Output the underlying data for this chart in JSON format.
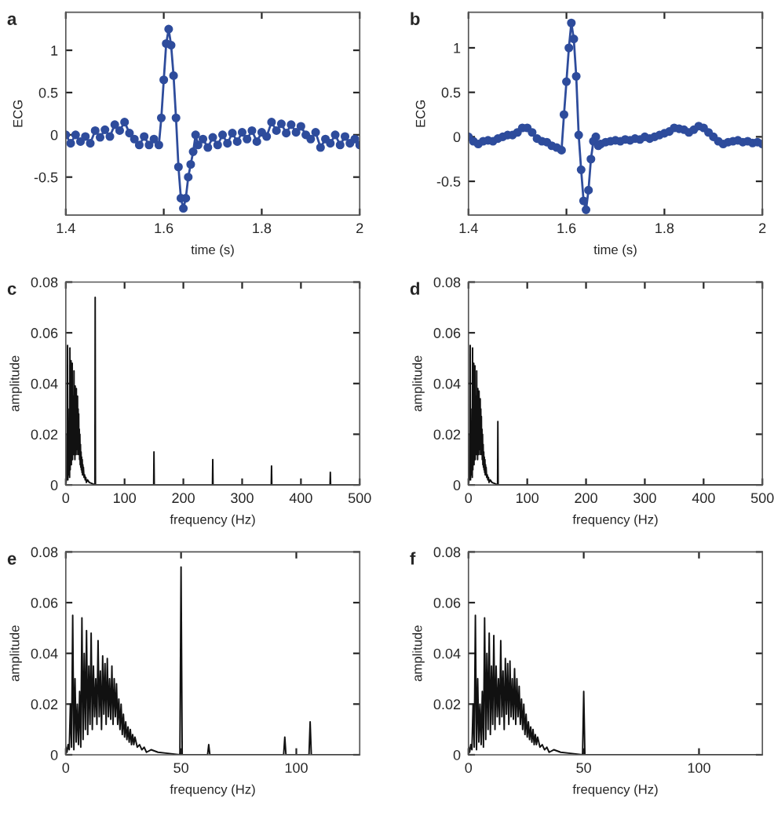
{
  "chart_data": [
    {
      "type": "line",
      "title": "a",
      "xlabel": "time (s)",
      "ylabel": "ECG",
      "xlim": [
        1.4,
        2
      ],
      "ylim": [
        -0.95,
        1.45
      ],
      "xticks": [
        1.4,
        1.6,
        1.8,
        2
      ],
      "yticks": [
        -0.5,
        0,
        0.5,
        1
      ],
      "grid": false,
      "marker": "circle",
      "line_style": "solid",
      "series": [
        {
          "color": "#2e4c9c",
          "x": [
            1.4,
            1.41,
            1.42,
            1.43,
            1.44,
            1.45,
            1.46,
            1.47,
            1.48,
            1.49,
            1.5,
            1.51,
            1.52,
            1.53,
            1.54,
            1.55,
            1.56,
            1.57,
            1.58,
            1.59,
            1.595,
            1.6,
            1.605,
            1.61,
            1.615,
            1.62,
            1.625,
            1.63,
            1.635,
            1.64,
            1.645,
            1.65,
            1.655,
            1.66,
            1.665,
            1.67,
            1.68,
            1.69,
            1.7,
            1.71,
            1.72,
            1.73,
            1.74,
            1.75,
            1.76,
            1.77,
            1.78,
            1.79,
            1.8,
            1.81,
            1.82,
            1.83,
            1.84,
            1.85,
            1.86,
            1.87,
            1.88,
            1.89,
            1.9,
            1.91,
            1.92,
            1.93,
            1.94,
            1.95,
            1.96,
            1.97,
            1.98,
            1.99,
            2.0
          ],
          "values": [
            0.0,
            -0.1,
            0.0,
            -0.08,
            -0.02,
            -0.1,
            0.05,
            -0.03,
            0.06,
            -0.02,
            0.12,
            0.05,
            0.15,
            0.02,
            -0.05,
            -0.12,
            -0.02,
            -0.12,
            -0.05,
            -0.12,
            0.2,
            0.65,
            1.08,
            1.25,
            1.06,
            0.7,
            0.2,
            -0.38,
            -0.75,
            -0.87,
            -0.75,
            -0.5,
            -0.35,
            -0.2,
            0.0,
            -0.12,
            -0.05,
            -0.15,
            -0.03,
            -0.12,
            0.0,
            -0.1,
            0.02,
            -0.08,
            0.03,
            -0.05,
            0.05,
            -0.08,
            0.03,
            -0.02,
            0.15,
            0.05,
            0.13,
            0.02,
            0.12,
            0.03,
            0.1,
            0.0,
            -0.05,
            0.03,
            -0.15,
            -0.05,
            -0.1,
            0.0,
            -0.12,
            -0.02,
            -0.1,
            -0.05,
            -0.12
          ]
        }
      ]
    },
    {
      "type": "line",
      "title": "b",
      "xlabel": "time (s)",
      "ylabel": "ECG",
      "xlim": [
        1.4,
        2
      ],
      "ylim": [
        -0.88,
        1.4
      ],
      "xticks": [
        1.4,
        1.6,
        1.8,
        2
      ],
      "yticks": [
        -0.5,
        0,
        0.5,
        1
      ],
      "grid": false,
      "marker": "circle",
      "line_style": "solid",
      "series": [
        {
          "color": "#2e4c9c",
          "x": [
            1.4,
            1.41,
            1.42,
            1.43,
            1.44,
            1.45,
            1.46,
            1.47,
            1.48,
            1.49,
            1.5,
            1.51,
            1.52,
            1.53,
            1.54,
            1.55,
            1.56,
            1.57,
            1.58,
            1.59,
            1.595,
            1.6,
            1.605,
            1.61,
            1.615,
            1.62,
            1.625,
            1.63,
            1.635,
            1.64,
            1.645,
            1.65,
            1.655,
            1.66,
            1.665,
            1.67,
            1.68,
            1.69,
            1.7,
            1.71,
            1.72,
            1.73,
            1.74,
            1.75,
            1.76,
            1.77,
            1.78,
            1.79,
            1.8,
            1.81,
            1.82,
            1.83,
            1.84,
            1.85,
            1.86,
            1.87,
            1.88,
            1.89,
            1.9,
            1.91,
            1.92,
            1.93,
            1.94,
            1.95,
            1.96,
            1.97,
            1.98,
            1.99,
            2.0
          ],
          "values": [
            0.0,
            -0.05,
            -0.08,
            -0.05,
            -0.04,
            -0.05,
            -0.02,
            0.0,
            0.02,
            0.02,
            0.05,
            0.1,
            0.1,
            0.05,
            -0.02,
            -0.05,
            -0.06,
            -0.1,
            -0.12,
            -0.15,
            0.25,
            0.62,
            1.0,
            1.28,
            1.1,
            0.68,
            0.02,
            -0.37,
            -0.72,
            -0.82,
            -0.6,
            -0.25,
            -0.05,
            0.0,
            -0.1,
            -0.08,
            -0.06,
            -0.05,
            -0.04,
            -0.05,
            -0.03,
            -0.04,
            -0.02,
            -0.03,
            0.0,
            -0.02,
            0.0,
            0.02,
            0.04,
            0.06,
            0.1,
            0.09,
            0.08,
            0.05,
            0.08,
            0.12,
            0.1,
            0.05,
            0.0,
            -0.05,
            -0.08,
            -0.06,
            -0.05,
            -0.04,
            -0.06,
            -0.05,
            -0.07,
            -0.06,
            -0.08
          ]
        }
      ]
    },
    {
      "type": "line",
      "title": "c",
      "xlabel": "frequency (Hz)",
      "ylabel": "amplitude",
      "xlim": [
        0,
        500
      ],
      "ylim": [
        0,
        0.08
      ],
      "xticks": [
        0,
        100,
        200,
        300,
        400,
        500
      ],
      "yticks": [
        0,
        0.02,
        0.04,
        0.06,
        0.08
      ],
      "grid": false,
      "marker": "none",
      "line_style": "solid",
      "series": [
        {
          "color": "#111111",
          "x": [
            0,
            0.5,
            1,
            1.5,
            2,
            2.5,
            3,
            3.5,
            4,
            4.5,
            5,
            5.5,
            6,
            6.5,
            7,
            7.5,
            8,
            8.5,
            9,
            9.5,
            10,
            10.5,
            11,
            11.5,
            12,
            12.5,
            13,
            13.5,
            14,
            14.5,
            15,
            15.5,
            16,
            16.5,
            17,
            17.5,
            18,
            18.5,
            19,
            19.5,
            20,
            20.5,
            21,
            21.5,
            22,
            22.5,
            23,
            23.5,
            24,
            24.5,
            25,
            25.5,
            26,
            26.5,
            27,
            27.5,
            28,
            28.5,
            29,
            29.5,
            30,
            31,
            32,
            33,
            34,
            35,
            37,
            40,
            45,
            49.5,
            50,
            50.5,
            149.5,
            150,
            150.5,
            249.5,
            250,
            250.5,
            349.5,
            350,
            350.5,
            449.5,
            450,
            450.5,
            500
          ],
          "values": [
            0.003,
            0.001,
            0.004,
            0.002,
            0.02,
            0.003,
            0.055,
            0.002,
            0.03,
            0.005,
            0.02,
            0.004,
            0.025,
            0.003,
            0.054,
            0.006,
            0.04,
            0.01,
            0.049,
            0.008,
            0.035,
            0.012,
            0.048,
            0.01,
            0.035,
            0.015,
            0.03,
            0.012,
            0.045,
            0.015,
            0.033,
            0.01,
            0.039,
            0.016,
            0.036,
            0.012,
            0.038,
            0.015,
            0.03,
            0.014,
            0.035,
            0.012,
            0.03,
            0.015,
            0.028,
            0.012,
            0.022,
            0.01,
            0.02,
            0.008,
            0.016,
            0.007,
            0.013,
            0.006,
            0.011,
            0.005,
            0.01,
            0.004,
            0.008,
            0.004,
            0.007,
            0.003,
            0.004,
            0.002,
            0.003,
            0.001,
            0.002,
            0.001,
            0.0005,
            0,
            0.074,
            0,
            0,
            0.013,
            0,
            0,
            0.01,
            0,
            0,
            0.0075,
            0,
            0,
            0.005,
            0,
            0
          ]
        }
      ]
    },
    {
      "type": "line",
      "title": "d",
      "xlabel": "frequency (Hz)",
      "ylabel": "amplitude",
      "xlim": [
        0,
        500
      ],
      "ylim": [
        0,
        0.08
      ],
      "xticks": [
        0,
        100,
        200,
        300,
        400,
        500
      ],
      "yticks": [
        0,
        0.02,
        0.04,
        0.06,
        0.08
      ],
      "grid": false,
      "marker": "none",
      "line_style": "solid",
      "series": [
        {
          "color": "#111111",
          "x": [
            0,
            0.5,
            1,
            1.5,
            2,
            2.5,
            3,
            3.5,
            4,
            4.5,
            5,
            5.5,
            6,
            6.5,
            7,
            7.5,
            8,
            8.5,
            9,
            9.5,
            10,
            10.5,
            11,
            11.5,
            12,
            12.5,
            13,
            13.5,
            14,
            14.5,
            15,
            15.5,
            16,
            16.5,
            17,
            17.5,
            18,
            18.5,
            19,
            19.5,
            20,
            20.5,
            21,
            21.5,
            22,
            22.5,
            23,
            23.5,
            24,
            24.5,
            25,
            25.5,
            26,
            26.5,
            27,
            27.5,
            28,
            28.5,
            29,
            29.5,
            30,
            31,
            32,
            33,
            34,
            35,
            37,
            40,
            45,
            49.5,
            50,
            50.5,
            500
          ],
          "values": [
            0.003,
            0.001,
            0.004,
            0.002,
            0.02,
            0.003,
            0.055,
            0.002,
            0.03,
            0.005,
            0.02,
            0.004,
            0.025,
            0.003,
            0.054,
            0.006,
            0.04,
            0.01,
            0.048,
            0.008,
            0.035,
            0.012,
            0.047,
            0.01,
            0.035,
            0.015,
            0.03,
            0.012,
            0.045,
            0.015,
            0.033,
            0.01,
            0.038,
            0.016,
            0.036,
            0.012,
            0.037,
            0.015,
            0.03,
            0.014,
            0.034,
            0.012,
            0.03,
            0.015,
            0.027,
            0.012,
            0.022,
            0.01,
            0.02,
            0.008,
            0.016,
            0.007,
            0.013,
            0.006,
            0.011,
            0.005,
            0.01,
            0.004,
            0.008,
            0.004,
            0.007,
            0.003,
            0.004,
            0.002,
            0.003,
            0.001,
            0.002,
            0.001,
            0.0005,
            0,
            0.025,
            0,
            0
          ]
        }
      ]
    },
    {
      "type": "line",
      "title": "e",
      "xlabel": "frequency (Hz)",
      "ylabel": "amplitude",
      "xlim": [
        0,
        127.5
      ],
      "ylim": [
        0,
        0.08
      ],
      "xticks": [
        0,
        50,
        100
      ],
      "yticks": [
        0,
        0.02,
        0.04,
        0.06,
        0.08
      ],
      "grid": false,
      "marker": "none",
      "line_style": "solid",
      "series": [
        {
          "color": "#111111",
          "x": [
            0,
            0.5,
            1,
            1.5,
            2,
            2.5,
            3,
            3.5,
            4,
            4.5,
            5,
            5.5,
            6,
            6.5,
            7,
            7.5,
            8,
            8.5,
            9,
            9.5,
            10,
            10.5,
            11,
            11.5,
            12,
            12.5,
            13,
            13.5,
            14,
            14.5,
            15,
            15.5,
            16,
            16.5,
            17,
            17.5,
            18,
            18.5,
            19,
            19.5,
            20,
            20.5,
            21,
            21.5,
            22,
            22.5,
            23,
            23.5,
            24,
            24.5,
            25,
            25.5,
            26,
            26.5,
            27,
            27.5,
            28,
            28.5,
            29,
            29.5,
            30,
            31,
            32,
            33,
            34,
            35,
            37,
            40,
            45,
            49.5,
            50,
            50.5,
            61.5,
            62,
            62.5,
            94.5,
            95,
            95.5,
            105.5,
            106,
            106.5,
            127.5
          ],
          "values": [
            0.003,
            0.001,
            0.004,
            0.002,
            0.02,
            0.003,
            0.055,
            0.002,
            0.03,
            0.005,
            0.02,
            0.004,
            0.025,
            0.003,
            0.054,
            0.006,
            0.04,
            0.01,
            0.049,
            0.008,
            0.035,
            0.012,
            0.048,
            0.01,
            0.035,
            0.015,
            0.03,
            0.012,
            0.045,
            0.015,
            0.033,
            0.01,
            0.039,
            0.016,
            0.036,
            0.012,
            0.038,
            0.015,
            0.03,
            0.014,
            0.035,
            0.012,
            0.03,
            0.015,
            0.028,
            0.012,
            0.022,
            0.01,
            0.02,
            0.008,
            0.016,
            0.007,
            0.013,
            0.006,
            0.011,
            0.005,
            0.01,
            0.004,
            0.008,
            0.004,
            0.007,
            0.003,
            0.004,
            0.002,
            0.003,
            0.001,
            0.002,
            0.001,
            0.0005,
            0,
            0.074,
            0,
            0,
            0.004,
            0,
            0,
            0.007,
            0,
            0,
            0.013,
            0,
            0
          ]
        }
      ]
    },
    {
      "type": "line",
      "title": "f",
      "xlabel": "frequency (Hz)",
      "ylabel": "amplitude",
      "xlim": [
        0,
        127.5
      ],
      "ylim": [
        0,
        0.08
      ],
      "xticks": [
        0,
        50,
        100
      ],
      "yticks": [
        0,
        0.02,
        0.04,
        0.06,
        0.08
      ],
      "grid": false,
      "marker": "none",
      "line_style": "solid",
      "series": [
        {
          "color": "#111111",
          "x": [
            0,
            0.5,
            1,
            1.5,
            2,
            2.5,
            3,
            3.5,
            4,
            4.5,
            5,
            5.5,
            6,
            6.5,
            7,
            7.5,
            8,
            8.5,
            9,
            9.5,
            10,
            10.5,
            11,
            11.5,
            12,
            12.5,
            13,
            13.5,
            14,
            14.5,
            15,
            15.5,
            16,
            16.5,
            17,
            17.5,
            18,
            18.5,
            19,
            19.5,
            20,
            20.5,
            21,
            21.5,
            22,
            22.5,
            23,
            23.5,
            24,
            24.5,
            25,
            25.5,
            26,
            26.5,
            27,
            27.5,
            28,
            28.5,
            29,
            29.5,
            30,
            31,
            32,
            33,
            34,
            35,
            37,
            40,
            45,
            49.5,
            50,
            50.5,
            127.5
          ],
          "values": [
            0.003,
            0.001,
            0.004,
            0.002,
            0.02,
            0.003,
            0.055,
            0.002,
            0.03,
            0.005,
            0.02,
            0.004,
            0.025,
            0.003,
            0.054,
            0.006,
            0.04,
            0.01,
            0.048,
            0.008,
            0.035,
            0.012,
            0.047,
            0.01,
            0.035,
            0.015,
            0.03,
            0.012,
            0.045,
            0.015,
            0.033,
            0.01,
            0.038,
            0.016,
            0.036,
            0.012,
            0.037,
            0.015,
            0.03,
            0.014,
            0.034,
            0.012,
            0.03,
            0.015,
            0.027,
            0.012,
            0.022,
            0.01,
            0.02,
            0.008,
            0.016,
            0.007,
            0.013,
            0.006,
            0.011,
            0.005,
            0.01,
            0.004,
            0.008,
            0.004,
            0.007,
            0.003,
            0.004,
            0.002,
            0.003,
            0.001,
            0.002,
            0.001,
            0.0005,
            0,
            0.025,
            0,
            0
          ]
        }
      ]
    }
  ]
}
